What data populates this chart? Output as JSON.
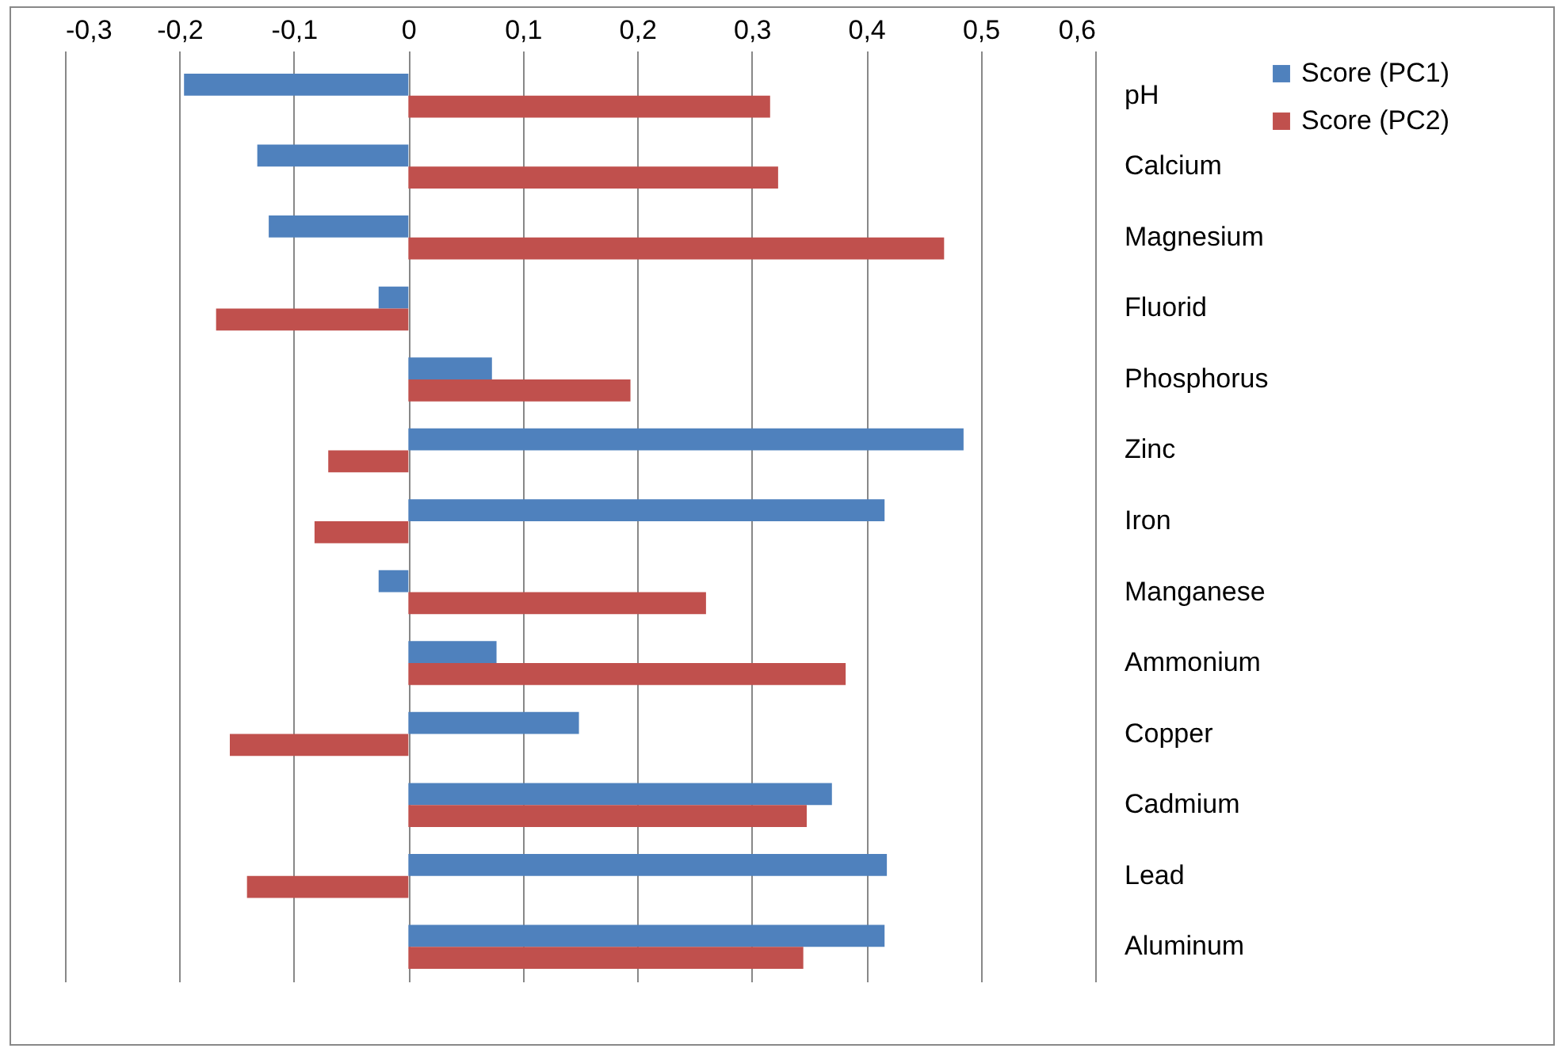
{
  "chart_data": {
    "type": "bar",
    "orientation": "horizontal",
    "categories": [
      "pH",
      "Calcium",
      "Magnesium",
      "Fluorid",
      "Phosphorus",
      "Zinc",
      "Iron",
      "Manganese",
      "Ammonium",
      "Copper",
      "Cadmium",
      "Lead",
      "Aluminum"
    ],
    "series": [
      {
        "name": "Score (PC1)",
        "color": "#4f81bd",
        "values": [
          -0.196,
          -0.132,
          -0.122,
          -0.026,
          0.073,
          0.485,
          0.416,
          -0.026,
          0.077,
          0.149,
          0.37,
          0.418,
          0.416
        ]
      },
      {
        "name": "Score (PC2)",
        "color": "#c0504d",
        "values": [
          0.316,
          0.323,
          0.468,
          -0.168,
          0.194,
          -0.07,
          -0.082,
          0.26,
          0.382,
          -0.156,
          0.348,
          -0.141,
          0.345
        ]
      }
    ],
    "xlim": [
      -0.3,
      0.6
    ],
    "xticks": [
      {
        "value": -0.3,
        "label": "-0,3"
      },
      {
        "value": -0.2,
        "label": "-0,2"
      },
      {
        "value": -0.1,
        "label": "-0,1"
      },
      0,
      {
        "value": 0.1,
        "label": "0,1"
      },
      {
        "value": 0.2,
        "label": "0,2"
      },
      {
        "value": 0.3,
        "label": "0,3"
      },
      {
        "value": 0.4,
        "label": "0,4"
      },
      {
        "value": 0.5,
        "label": "0,5"
      },
      {
        "value": 0.6,
        "label": "0,6"
      }
    ],
    "grid": "x",
    "legend": "right"
  }
}
